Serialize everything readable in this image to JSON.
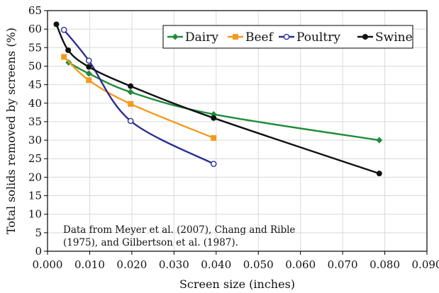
{
  "chart_data": {
    "type": "line",
    "title": "",
    "xlabel": "Screen size (inches)",
    "ylabel": "Total solids removed by screens (%)",
    "xlim": [
      0,
      0.09
    ],
    "ylim": [
      0,
      65
    ],
    "x_ticks": [
      0.0,
      0.01,
      0.02,
      0.03,
      0.04,
      0.05,
      0.06,
      0.07,
      0.08,
      0.09
    ],
    "x_tick_labels": [
      "0.000",
      "0.010",
      "0.020",
      "0.030",
      "0.040",
      "0.050",
      "0.060",
      "0.070",
      "0.080",
      "0.090"
    ],
    "y_ticks": [
      0,
      5,
      10,
      15,
      20,
      25,
      30,
      35,
      40,
      45,
      50,
      55,
      60,
      65
    ],
    "y_tick_labels": [
      "0",
      "5",
      "10",
      "15",
      "20",
      "25",
      "30",
      "35",
      "40",
      "45",
      "50",
      "55",
      "60",
      "65"
    ],
    "grid": true,
    "legend_position": "top-right",
    "annotation": [
      "Data from Meyer et al. (2007), Chang and Rible",
      "(1975), and Gilbertson et al. (1987)."
    ],
    "series": [
      {
        "name": "Dairy",
        "color": "#1e8c3a",
        "marker": "diamond",
        "x": [
          0.005,
          0.0098,
          0.0197,
          0.0394,
          0.0787
        ],
        "y": [
          51,
          48,
          43,
          37,
          30
        ]
      },
      {
        "name": "Beef",
        "color": "#f39a1e",
        "marker": "square",
        "x": [
          0.0039,
          0.0098,
          0.0197,
          0.0394
        ],
        "y": [
          52.5,
          46.2,
          39.8,
          30.6
        ]
      },
      {
        "name": "Poultry",
        "color": "#2b2f94",
        "marker": "open-circle",
        "x": [
          0.0039,
          0.0098,
          0.0197,
          0.0394
        ],
        "y": [
          59.8,
          51.5,
          35.2,
          23.6
        ]
      },
      {
        "name": "Swine",
        "color": "#111111",
        "marker": "circle",
        "x": [
          0.0021,
          0.0049,
          0.0098,
          0.0197,
          0.0394,
          0.0787
        ],
        "y": [
          61.3,
          54.3,
          49.8,
          44.6,
          36.0,
          21.0
        ]
      }
    ]
  }
}
